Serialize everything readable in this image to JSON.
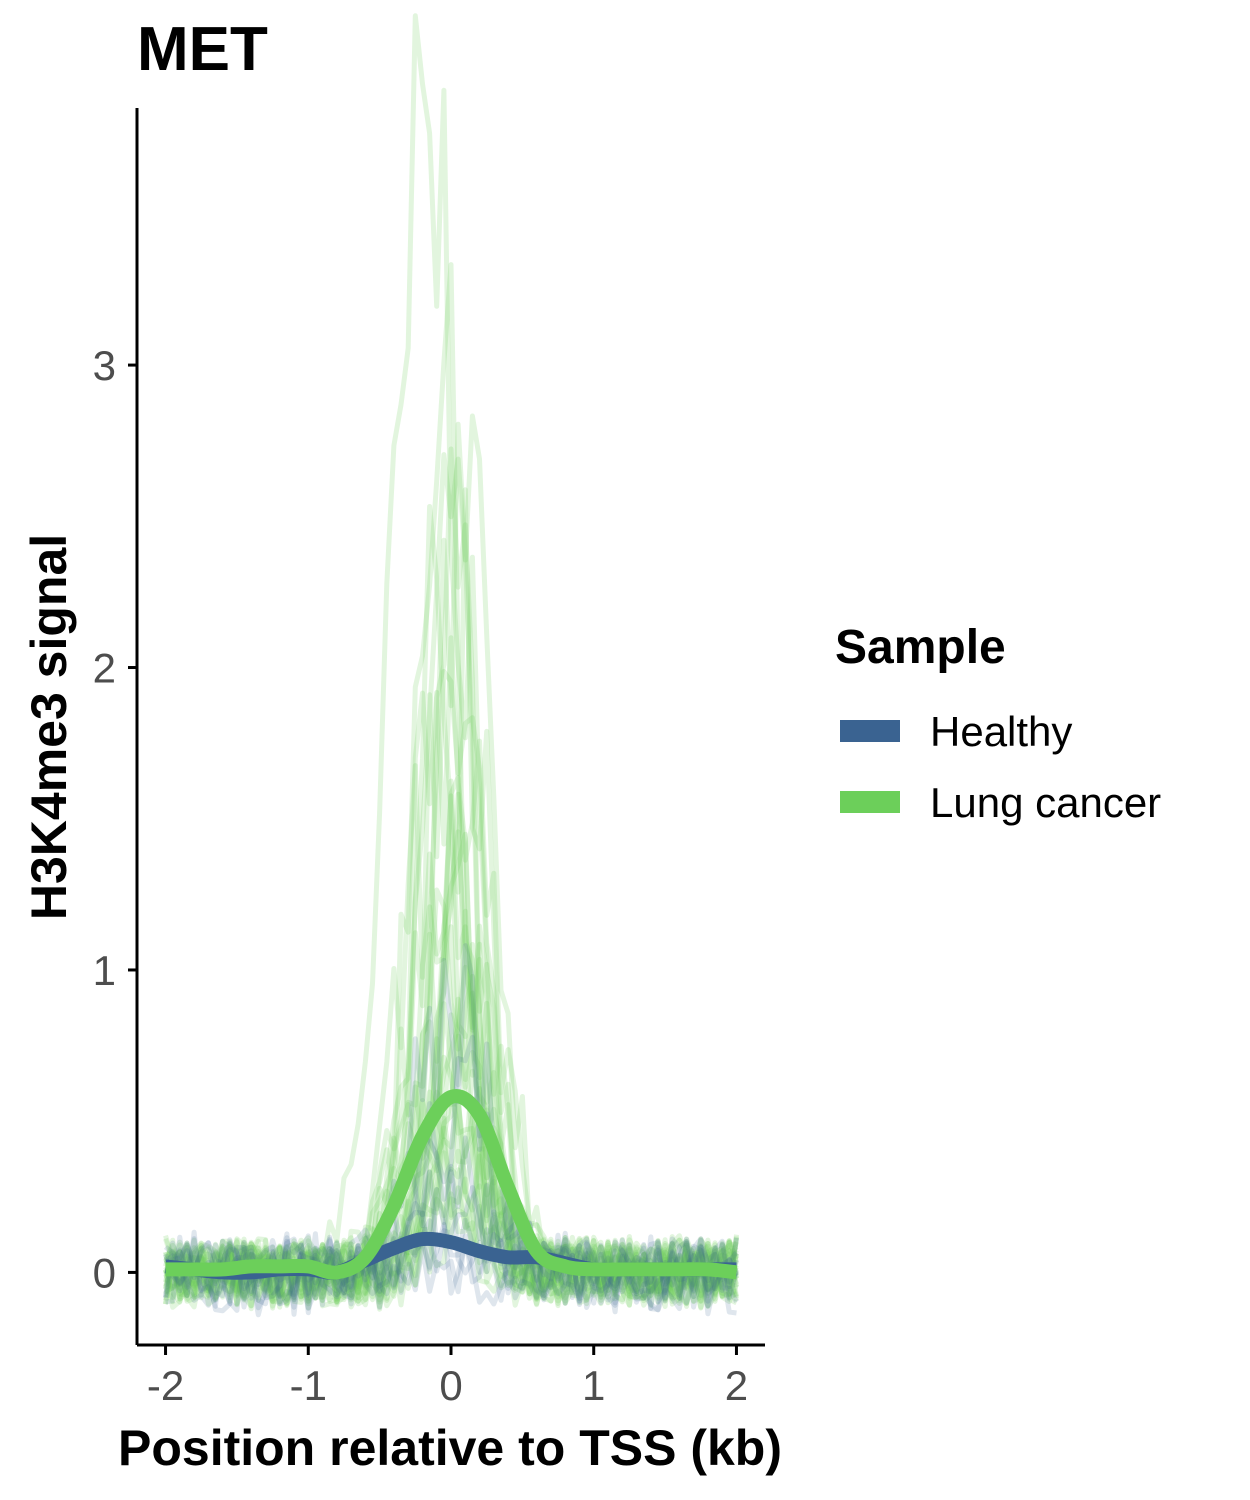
{
  "chart_data": {
    "type": "line",
    "title": "MET",
    "xlabel": "Position relative to TSS (kb)",
    "ylabel": "H3K4me3 signal",
    "xlim": [
      -2.2,
      2.2
    ],
    "ylim": [
      -0.24,
      3.85
    ],
    "x_ticks": [
      -2,
      -1,
      0,
      1,
      2
    ],
    "y_ticks": [
      0,
      1,
      2,
      3
    ],
    "grid": false,
    "legend": {
      "title": "Sample",
      "position": "right",
      "entries": [
        {
          "label": "Healthy",
          "color": "#3a6391"
        },
        {
          "label": "Lung cancer",
          "color": "#6ccf5a"
        }
      ]
    },
    "x": [
      -2.0,
      -1.8,
      -1.6,
      -1.4,
      -1.2,
      -1.0,
      -0.8,
      -0.6,
      -0.4,
      -0.2,
      0.0,
      0.2,
      0.4,
      0.6,
      0.8,
      1.0,
      1.2,
      1.4,
      1.6,
      1.8,
      2.0
    ],
    "series": [
      {
        "name": "Healthy",
        "color": "#3a6391",
        "values": [
          0.02,
          0.01,
          0.0,
          0.0,
          0.01,
          0.01,
          0.0,
          0.04,
          0.08,
          0.11,
          0.1,
          0.07,
          0.05,
          0.05,
          0.03,
          0.01,
          0.01,
          0.01,
          0.01,
          0.01,
          0.01
        ]
      },
      {
        "name": "Lung cancer",
        "color": "#6ccf5a",
        "values": [
          0.01,
          0.01,
          0.01,
          0.02,
          0.02,
          0.02,
          0.0,
          0.05,
          0.22,
          0.45,
          0.58,
          0.52,
          0.28,
          0.07,
          0.02,
          0.01,
          0.01,
          0.01,
          0.01,
          0.01,
          0.0
        ]
      }
    ]
  }
}
